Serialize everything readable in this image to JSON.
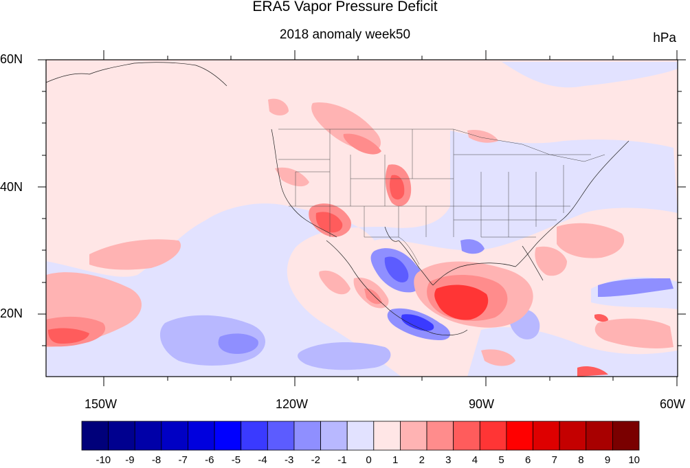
{
  "title": "ERA5 Vapor Pressure Deficit",
  "subtitle": "2018 anomaly week50",
  "units": "hPa",
  "lat_labels": [
    "60N",
    "40N",
    "20N"
  ],
  "lon_labels": [
    "150W",
    "120W",
    "90W",
    "60W"
  ],
  "colorbar": {
    "labels": [
      "-10",
      "-9",
      "-8",
      "-7",
      "-6",
      "-5",
      "-4",
      "-3",
      "-2",
      "-1",
      "0",
      "1",
      "2",
      "3",
      "4",
      "5",
      "6",
      "7",
      "8",
      "9",
      "10"
    ],
    "colors": [
      "#00007a",
      "#00008f",
      "#0000a8",
      "#0000c4",
      "#0000de",
      "#0000ff",
      "#3a3aff",
      "#5c5cff",
      "#8f8fff",
      "#b8b8ff",
      "#e2e2ff",
      "#ffe6e6",
      "#ffb3b3",
      "#ff8c8c",
      "#ff5c5c",
      "#ff3535",
      "#ff0000",
      "#de0000",
      "#c40000",
      "#a80000",
      "#7a0000"
    ]
  }
}
